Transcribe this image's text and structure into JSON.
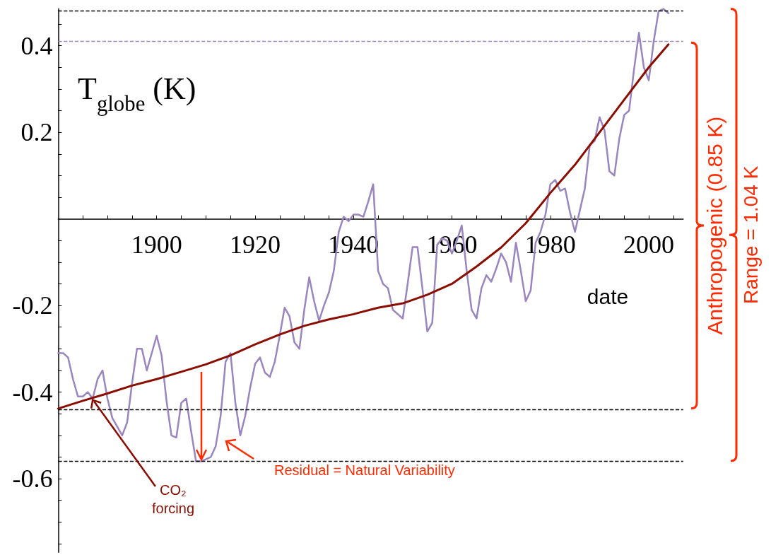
{
  "chart_data": {
    "type": "line",
    "xlabel": "date",
    "ylabel": "T$_{globe}$ (K)",
    "x": [
      1880,
      1881,
      1882,
      1883,
      1884,
      1885,
      1886,
      1887,
      1888,
      1889,
      1890,
      1891,
      1892,
      1893,
      1894,
      1895,
      1896,
      1897,
      1898,
      1899,
      1900,
      1901,
      1902,
      1903,
      1904,
      1905,
      1906,
      1907,
      1908,
      1909,
      1910,
      1911,
      1912,
      1913,
      1914,
      1915,
      1916,
      1917,
      1918,
      1919,
      1920,
      1921,
      1922,
      1923,
      1924,
      1925,
      1926,
      1927,
      1928,
      1929,
      1930,
      1931,
      1932,
      1933,
      1934,
      1935,
      1936,
      1937,
      1938,
      1939,
      1940,
      1941,
      1942,
      1943,
      1944,
      1945,
      1946,
      1947,
      1948,
      1949,
      1950,
      1951,
      1952,
      1953,
      1954,
      1955,
      1956,
      1957,
      1958,
      1959,
      1960,
      1961,
      1962,
      1963,
      1964,
      1965,
      1966,
      1967,
      1968,
      1969,
      1970,
      1971,
      1972,
      1973,
      1974,
      1975,
      1976,
      1977,
      1978,
      1979,
      1980,
      1981,
      1982,
      1983,
      1984,
      1985,
      1986,
      1987,
      1988,
      1989,
      1990,
      1991,
      1992,
      1993,
      1994,
      1995,
      1996,
      1997,
      1998,
      1999,
      2000,
      2001,
      2002,
      2003,
      2004
    ],
    "series": [
      {
        "color": "#9a85c0",
        "values": [
          -0.31,
          -0.31,
          -0.32,
          -0.37,
          -0.41,
          -0.41,
          -0.4,
          -0.415,
          -0.37,
          -0.35,
          -0.415,
          -0.46,
          -0.48,
          -0.5,
          -0.47,
          -0.38,
          -0.3,
          -0.3,
          -0.35,
          -0.31,
          -0.27,
          -0.315,
          -0.42,
          -0.5,
          -0.505,
          -0.425,
          -0.415,
          -0.49,
          -0.56,
          -0.56,
          -0.555,
          -0.55,
          -0.525,
          -0.455,
          -0.33,
          -0.31,
          -0.425,
          -0.5,
          -0.455,
          -0.39,
          -0.335,
          -0.32,
          -0.355,
          -0.365,
          -0.33,
          -0.27,
          -0.205,
          -0.225,
          -0.285,
          -0.3,
          -0.21,
          -0.135,
          -0.19,
          -0.235,
          -0.2,
          -0.17,
          -0.12,
          -0.03,
          0.005,
          -0.005,
          0.01,
          0.01,
          0.005,
          0.04,
          0.08,
          -0.12,
          -0.15,
          -0.16,
          -0.21,
          -0.22,
          -0.23,
          -0.15,
          -0.065,
          -0.065,
          -0.16,
          -0.26,
          -0.24,
          -0.06,
          -0.045,
          -0.05,
          -0.08,
          -0.05,
          -0.015,
          -0.12,
          -0.21,
          -0.23,
          -0.16,
          -0.13,
          -0.145,
          -0.115,
          -0.08,
          -0.1,
          -0.145,
          -0.055,
          -0.12,
          -0.19,
          -0.165,
          -0.055,
          -0.03,
          0.01,
          0.08,
          0.09,
          0.065,
          0.07,
          0.015,
          -0.03,
          0.02,
          0.07,
          0.17,
          0.18,
          0.235,
          0.205,
          0.11,
          0.1,
          0.185,
          0.24,
          0.25,
          0.345,
          0.43,
          0.35,
          0.32,
          0.41,
          0.48,
          0.485,
          0.475
        ]
      },
      {
        "color": "#8b0d00",
        "x": [
          1880,
          1885,
          1890,
          1895,
          1900,
          1905,
          1910,
          1915,
          1920,
          1925,
          1930,
          1935,
          1940,
          1945,
          1950,
          1955,
          1960,
          1965,
          1970,
          1975,
          1980,
          1985,
          1990,
          1995,
          2000,
          2004
        ],
        "values": [
          -0.438,
          -0.42,
          -0.403,
          -0.385,
          -0.37,
          -0.353,
          -0.336,
          -0.315,
          -0.29,
          -0.267,
          -0.247,
          -0.232,
          -0.22,
          -0.205,
          -0.195,
          -0.175,
          -0.15,
          -0.11,
          -0.066,
          -0.01,
          0.06,
          0.125,
          0.2,
          0.275,
          0.35,
          0.403
        ]
      }
    ],
    "xlim": [
      1880,
      2007
    ],
    "xticks": [
      {
        "value": 1885,
        "label": null
      },
      {
        "value": 1890,
        "label": null
      },
      {
        "value": 1895,
        "label": null
      },
      1900,
      {
        "value": 1905,
        "label": null
      },
      {
        "value": 1910,
        "label": null
      },
      {
        "value": 1915,
        "label": null
      },
      1920,
      {
        "value": 1925,
        "label": null
      },
      {
        "value": 1930,
        "label": null
      },
      {
        "value": 1935,
        "label": null
      },
      1940,
      {
        "value": 1945,
        "label": null
      },
      {
        "value": 1950,
        "label": null
      },
      {
        "value": 1955,
        "label": null
      },
      1960,
      {
        "value": 1965,
        "label": null
      },
      {
        "value": 1970,
        "label": null
      },
      {
        "value": 1975,
        "label": null
      },
      1980,
      {
        "value": 1985,
        "label": null
      },
      {
        "value": 1990,
        "label": null
      },
      {
        "value": 1995,
        "label": null
      },
      2000,
      {
        "value": 2005,
        "label": null
      }
    ],
    "ylim": [
      -0.77,
      0.485
    ],
    "yticks": [
      {
        "value": -0.75,
        "label": null
      },
      {
        "value": -0.7,
        "label": null
      },
      {
        "value": -0.65,
        "label": null
      },
      -0.6,
      {
        "value": -0.55,
        "label": null
      },
      {
        "value": -0.5,
        "label": null
      },
      {
        "value": -0.45,
        "label": null
      },
      -0.4,
      {
        "value": -0.35,
        "label": null
      },
      {
        "value": -0.3,
        "label": null
      },
      {
        "value": -0.25,
        "label": null
      },
      -0.2,
      {
        "value": -0.15,
        "label": null
      },
      {
        "value": -0.1,
        "label": null
      },
      {
        "value": -0.05,
        "label": null
      },
      {
        "value": 0.05,
        "label": null
      },
      {
        "value": 0.1,
        "label": null
      },
      {
        "value": 0.15,
        "label": null
      },
      0.2,
      {
        "value": 0.25,
        "label": null
      },
      {
        "value": 0.3,
        "label": null
      },
      {
        "value": 0.35,
        "label": null
      },
      0.4,
      {
        "value": 0.45,
        "label": null
      }
    ],
    "ref_lines": [
      {
        "axis": "y",
        "value": 0.485,
        "color": "#000000",
        "line_style": "dashed"
      },
      {
        "axis": "y",
        "value": 0.407,
        "color": "#9a85c0",
        "line_style": "dashed"
      },
      {
        "axis": "y",
        "value": -0.438,
        "color": "#000000",
        "line_style": "dashed"
      },
      {
        "axis": "y",
        "value": -0.559,
        "color": "#000000",
        "line_style": "dashed"
      }
    ],
    "annotations": [
      "Anthropogenic (0.85 K)",
      "Range = 1.04 K",
      {
        "text": "CO₂ forcing",
        "x": 1887,
        "y": -0.415
      },
      "Residual = Natural Variability"
    ],
    "grid": false,
    "marker": "none",
    "line_style": "solid"
  }
}
